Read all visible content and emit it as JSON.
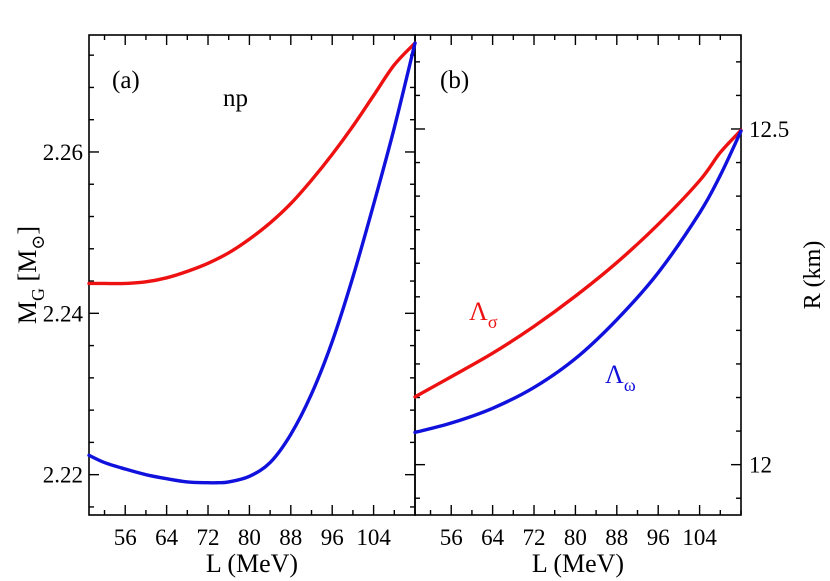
{
  "chart_data": [
    {
      "type": "line",
      "panel_label": "(a)",
      "annotation": "np",
      "xlabel": "L (MeV)",
      "ylabel_main": "M",
      "ylabel_sub": "G",
      "ylabel_unit_open": " [M",
      "ylabel_unit_sub": "⊙",
      "ylabel_unit_close": "]",
      "xlim": [
        49,
        112
      ],
      "ylim": [
        2.215,
        2.2745
      ],
      "xticks": [
        56,
        64,
        72,
        80,
        88,
        96,
        104
      ],
      "xtick_labels": [
        "56",
        "64",
        "72",
        "80",
        "88",
        "96",
        "104"
      ],
      "yticks": [
        2.22,
        2.24,
        2.26
      ],
      "ytick_labels": [
        "2.22",
        "2.24",
        "2.26"
      ],
      "grid": false,
      "series": [
        {
          "color": "#ee1111",
          "x": [
            49,
            52,
            56,
            60,
            64,
            68,
            72,
            76,
            80,
            84,
            88,
            92,
            96,
            100,
            104,
            108,
            112
          ],
          "y": [
            2.2437,
            2.2437,
            2.2437,
            2.2439,
            2.2444,
            2.2452,
            2.2462,
            2.2475,
            2.2492,
            2.2512,
            2.2536,
            2.2565,
            2.2597,
            2.2632,
            2.267,
            2.2708,
            2.2735
          ]
        },
        {
          "color": "#1111dd",
          "x": [
            49,
            52,
            56,
            60,
            64,
            68,
            72,
            74,
            76,
            80,
            84,
            88,
            92,
            96,
            100,
            104,
            108,
            112
          ],
          "y": [
            2.2224,
            2.2215,
            2.2207,
            2.22,
            2.2195,
            2.2191,
            2.219,
            2.219,
            2.2191,
            2.2198,
            2.2215,
            2.225,
            2.23,
            2.2365,
            2.2445,
            2.2535,
            2.263,
            2.2735
          ]
        }
      ]
    },
    {
      "type": "line",
      "panel_label": "(b)",
      "xlabel": "L (MeV)",
      "ylabel": "R (km)",
      "xlim": [
        49,
        112
      ],
      "ylim": [
        11.925,
        12.64
      ],
      "xticks": [
        56,
        64,
        72,
        80,
        88,
        96,
        104
      ],
      "xtick_labels": [
        "56",
        "64",
        "72",
        "80",
        "88",
        "96",
        "104"
      ],
      "yticks": [
        12.0,
        12.5
      ],
      "ytick_labels": [
        "12",
        "12.5"
      ],
      "grid": false,
      "series": [
        {
          "name": "Λσ",
          "label_main": "Λ",
          "label_sub": "σ",
          "color": "#ee1111",
          "x": [
            49,
            56,
            64,
            72,
            80,
            88,
            96,
            104,
            108,
            112
          ],
          "y": [
            12.101,
            12.131,
            12.166,
            12.206,
            12.251,
            12.301,
            12.358,
            12.423,
            12.465,
            12.498
          ]
        },
        {
          "name": "Λω",
          "label_main": "Λ",
          "label_sub": "ω",
          "color": "#1111dd",
          "x": [
            49,
            56,
            64,
            72,
            80,
            88,
            96,
            104,
            108,
            112
          ],
          "y": [
            12.048,
            12.062,
            12.084,
            12.115,
            12.158,
            12.216,
            12.286,
            12.375,
            12.431,
            12.497
          ]
        }
      ]
    }
  ]
}
